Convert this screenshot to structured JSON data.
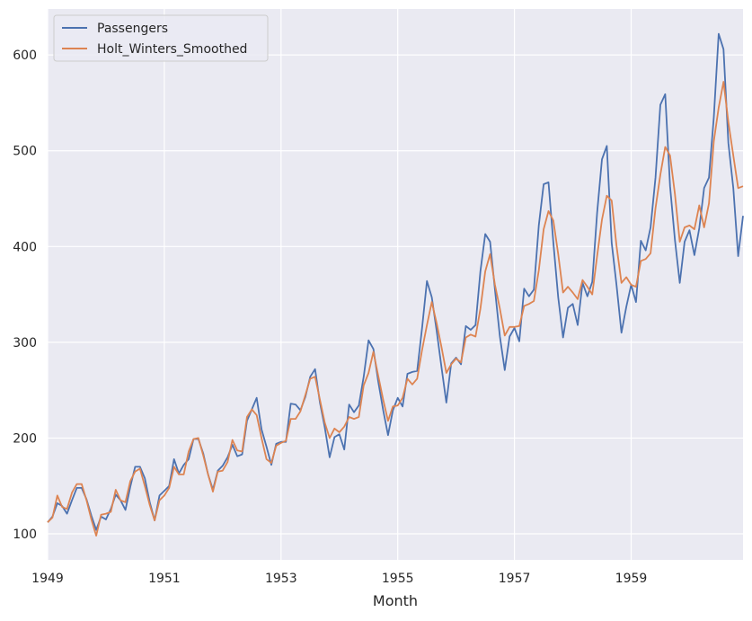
{
  "chart_data": {
    "type": "line",
    "title": "",
    "xlabel": "Month",
    "ylabel": "",
    "xlim": [
      1949.0,
      1960.917
    ],
    "ylim": [
      72.8,
      648
    ],
    "x_start": "1949-01",
    "frequency": "monthly",
    "xticks": [
      1949,
      1951,
      1953,
      1955,
      1957,
      1959
    ],
    "xtick_labels": [
      "1949",
      "1951",
      "1953",
      "1955",
      "1957",
      "1959"
    ],
    "yticks": [
      100,
      200,
      300,
      400,
      500,
      600
    ],
    "ytick_labels": [
      "100",
      "200",
      "300",
      "400",
      "500",
      "600"
    ],
    "grid": true,
    "legend_position": "top-left",
    "series": [
      {
        "name": "Passengers",
        "color": "#4c72b0",
        "values": [
          112,
          118,
          132,
          129,
          121,
          135,
          148,
          148,
          136,
          119,
          104,
          118,
          115,
          126,
          141,
          135,
          125,
          149,
          170,
          170,
          158,
          133,
          114,
          140,
          145,
          150,
          178,
          163,
          172,
          178,
          199,
          199,
          184,
          162,
          146,
          166,
          171,
          180,
          193,
          181,
          183,
          218,
          230,
          242,
          209,
          191,
          172,
          194,
          196,
          196,
          236,
          235,
          229,
          243,
          264,
          272,
          237,
          211,
          180,
          201,
          204,
          188,
          235,
          227,
          234,
          264,
          302,
          293,
          259,
          229,
          203,
          229,
          242,
          233,
          267,
          269,
          270,
          315,
          364,
          347,
          312,
          274,
          237,
          278,
          284,
          277,
          317,
          313,
          318,
          374,
          413,
          405,
          355,
          306,
          271,
          306,
          315,
          301,
          356,
          348,
          355,
          422,
          465,
          467,
          404,
          347,
          305,
          336,
          340,
          318,
          362,
          348,
          363,
          435,
          491,
          505,
          404,
          359,
          310,
          337,
          360,
          342,
          406,
          396,
          420,
          472,
          548,
          559,
          463,
          407,
          362,
          405,
          417,
          391,
          419,
          461,
          472,
          535,
          622,
          606,
          508,
          461,
          390,
          432
        ]
      },
      {
        "name": "Holt_Winters_Smoothed",
        "color": "#dd8452",
        "values": [
          112,
          117,
          140,
          128,
          126,
          143,
          152,
          152,
          135,
          115,
          98,
          120,
          121,
          123,
          146,
          135,
          133,
          155,
          165,
          168,
          150,
          130,
          114,
          135,
          140,
          148,
          170,
          162,
          162,
          186,
          199,
          200,
          182,
          162,
          144,
          165,
          166,
          175,
          198,
          187,
          186,
          222,
          230,
          224,
          200,
          178,
          174,
          192,
          195,
          197,
          220,
          220,
          228,
          245,
          262,
          264,
          240,
          216,
          200,
          210,
          206,
          212,
          222,
          220,
          222,
          255,
          268,
          290,
          265,
          240,
          218,
          233,
          234,
          242,
          262,
          256,
          262,
          292,
          318,
          342,
          320,
          295,
          268,
          277,
          283,
          279,
          305,
          308,
          306,
          335,
          374,
          392,
          360,
          335,
          307,
          316,
          316,
          317,
          338,
          340,
          343,
          375,
          418,
          437,
          427,
          392,
          352,
          358,
          352,
          345,
          365,
          358,
          350,
          390,
          428,
          453,
          448,
          400,
          362,
          368,
          360,
          358,
          385,
          387,
          393,
          440,
          475,
          504,
          495,
          455,
          405,
          420,
          422,
          418,
          443,
          420,
          445,
          510,
          545,
          572,
          530,
          495,
          461,
          463
        ]
      }
    ]
  }
}
